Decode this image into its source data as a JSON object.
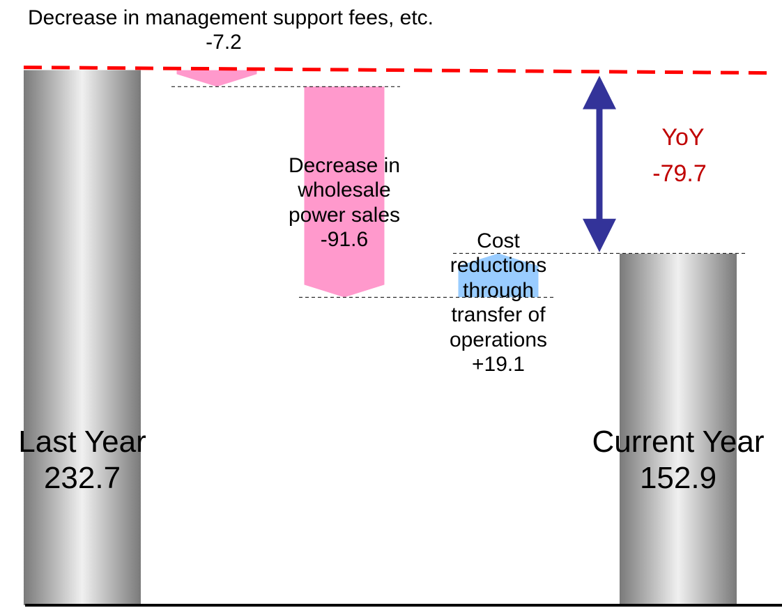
{
  "chart_data": {
    "type": "waterfall",
    "categories": [
      "Last Year",
      "Decrease in management support fees, etc.",
      "Decrease in wholesale power sales",
      "Cost reductions through transfer of operations",
      "Current Year"
    ],
    "values": [
      232.7,
      -7.2,
      -91.6,
      19.1,
      152.9
    ],
    "value_labels": [
      "232.7",
      "-7.2",
      "-91.6",
      "+19.1",
      "152.9"
    ],
    "colors": [
      "#7a7a7a",
      "#ff99cc",
      "#ff99cc",
      "#99ccff",
      "#7a7a7a"
    ],
    "ylim": [
      0,
      245
    ],
    "annotation": {
      "label": "YoY",
      "value": -79.7,
      "color": "#c00000"
    }
  }
}
